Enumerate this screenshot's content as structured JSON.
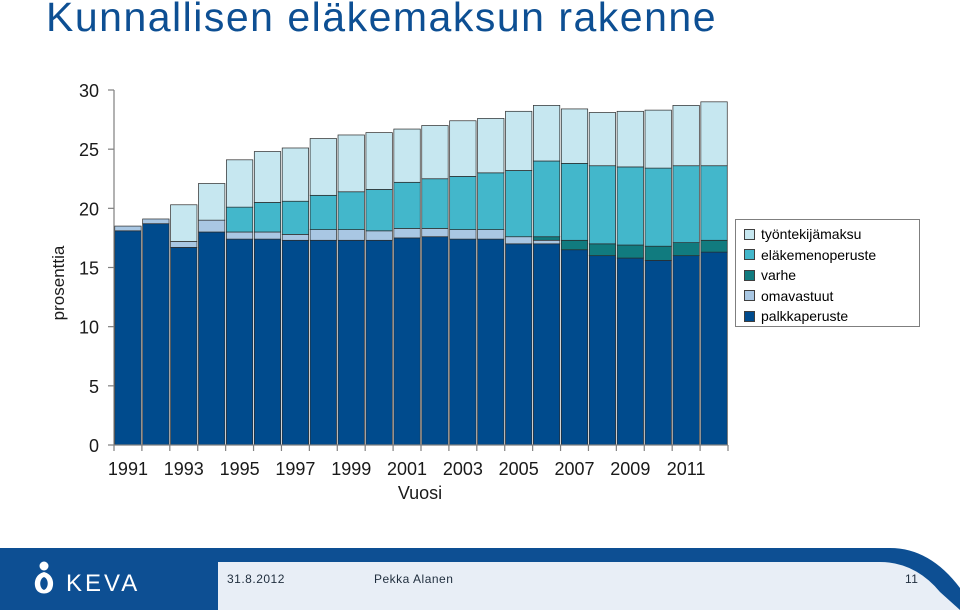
{
  "page": {
    "title": "Kunnallisen eläkemaksun rakenne"
  },
  "chart_data": {
    "type": "bar",
    "stacked": true,
    "xlabel": "Vuosi",
    "ylabel": "prosenttia",
    "ylim": [
      0,
      30
    ],
    "yticks": [
      "0",
      "5",
      "10",
      "15",
      "20",
      "25",
      "30"
    ],
    "grid": false,
    "legend_position": "right",
    "categories": [
      "1991",
      "1992",
      "1993",
      "1994",
      "1995",
      "1996",
      "1997",
      "1998",
      "1999",
      "2000",
      "2001",
      "2002",
      "2003",
      "2004",
      "2005",
      "2006",
      "2007",
      "2008",
      "2009",
      "2010",
      "2011",
      "2012"
    ],
    "xtick_labels": [
      "1991",
      "1993",
      "1995",
      "1997",
      "1999",
      "2001",
      "2003",
      "2005",
      "2007",
      "2009",
      "2011"
    ],
    "series": [
      {
        "name": "palkkaperuste",
        "color": "#004b8d",
        "values": [
          18.1,
          18.7,
          16.7,
          18.0,
          17.4,
          17.4,
          17.3,
          17.3,
          17.3,
          17.3,
          17.5,
          17.6,
          17.4,
          17.4,
          17.0,
          17.0,
          16.5,
          16.0,
          15.8,
          15.6,
          16.0,
          16.3
        ]
      },
      {
        "name": "omavastuut",
        "color": "#a9c7e3",
        "values": [
          0.4,
          0.4,
          0.5,
          1.0,
          0.6,
          0.6,
          0.5,
          0.9,
          0.9,
          0.8,
          0.8,
          0.7,
          0.8,
          0.8,
          0.6,
          0.3,
          0.0,
          0.0,
          0.0,
          0.0,
          0.0,
          0.0
        ]
      },
      {
        "name": "varhe",
        "color": "#117b7f",
        "values": [
          0,
          0,
          0,
          0,
          0,
          0,
          0,
          0,
          0,
          0,
          0,
          0,
          0,
          0,
          0,
          0.3,
          0.8,
          1.0,
          1.1,
          1.2,
          1.1,
          1.0
        ]
      },
      {
        "name": "eläkemenoperuste",
        "color": "#43b7cb",
        "values": [
          0,
          0,
          0,
          0,
          2.1,
          2.5,
          2.8,
          2.9,
          3.2,
          3.5,
          3.9,
          4.2,
          4.5,
          4.8,
          5.6,
          6.4,
          6.5,
          6.6,
          6.6,
          6.6,
          6.5,
          6.3
        ]
      },
      {
        "name": "työntekijämaksu",
        "color": "#c6e7f0",
        "values": [
          0,
          0,
          3.1,
          3.1,
          4.0,
          4.3,
          4.5,
          4.8,
          4.8,
          4.8,
          4.5,
          4.5,
          4.7,
          4.6,
          5.0,
          4.7,
          4.6,
          4.5,
          4.7,
          4.9,
          5.1,
          5.4
        ]
      }
    ],
    "legend_order": [
      "työntekijämaksu",
      "eläkemenoperuste",
      "varhe",
      "omavastuut",
      "palkkaperuste"
    ]
  },
  "footer": {
    "logo_text": "KEVA",
    "date": "31.8.2012",
    "author": "Pekka Alanen",
    "page_number": "11"
  }
}
